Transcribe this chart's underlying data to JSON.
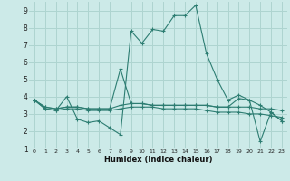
{
  "background_color": "#cceae8",
  "grid_color": "#aed4d0",
  "line_color": "#2d7d72",
  "xlabel": "Humidex (Indice chaleur)",
  "xlim": [
    0,
    23
  ],
  "ylim": [
    1,
    9.5
  ],
  "xticks": [
    0,
    1,
    2,
    3,
    4,
    5,
    6,
    7,
    8,
    9,
    10,
    11,
    12,
    13,
    14,
    15,
    16,
    17,
    18,
    19,
    20,
    21,
    22,
    23
  ],
  "yticks": [
    1,
    2,
    3,
    4,
    5,
    6,
    7,
    8,
    9
  ],
  "series": [
    {
      "x": [
        0,
        1,
        2,
        3,
        4,
        5,
        6,
        7,
        8,
        9,
        10,
        11,
        12,
        13,
        14,
        15,
        16,
        17,
        18,
        19,
        20,
        21,
        22,
        23
      ],
      "y": [
        3.8,
        3.3,
        3.2,
        4.0,
        2.7,
        2.5,
        2.6,
        2.2,
        1.8,
        7.8,
        7.1,
        7.9,
        7.8,
        8.7,
        8.7,
        9.3,
        6.5,
        5.0,
        3.8,
        4.1,
        3.8,
        1.4,
        3.1,
        2.6
      ]
    },
    {
      "x": [
        0,
        1,
        2,
        3,
        4,
        5,
        6,
        7,
        8,
        9,
        10,
        11,
        12,
        13,
        14,
        15,
        16,
        17,
        18,
        19,
        20,
        21,
        22,
        23
      ],
      "y": [
        3.8,
        3.3,
        3.2,
        3.3,
        3.3,
        3.2,
        3.2,
        3.2,
        3.3,
        3.4,
        3.4,
        3.4,
        3.3,
        3.3,
        3.3,
        3.3,
        3.2,
        3.1,
        3.1,
        3.1,
        3.0,
        3.0,
        2.9,
        2.8
      ]
    },
    {
      "x": [
        0,
        1,
        2,
        3,
        4,
        5,
        6,
        7,
        8,
        9,
        10,
        11,
        12,
        13,
        14,
        15,
        16,
        17,
        18,
        19,
        20,
        21,
        22,
        23
      ],
      "y": [
        3.8,
        3.4,
        3.3,
        3.4,
        3.4,
        3.3,
        3.3,
        3.3,
        3.5,
        3.6,
        3.6,
        3.5,
        3.5,
        3.5,
        3.5,
        3.5,
        3.5,
        3.4,
        3.4,
        3.9,
        3.8,
        3.5,
        3.1,
        2.6
      ]
    },
    {
      "x": [
        0,
        1,
        2,
        3,
        4,
        5,
        6,
        7,
        8,
        9,
        10,
        11,
        12,
        13,
        14,
        15,
        16,
        17,
        18,
        19,
        20,
        21,
        22,
        23
      ],
      "y": [
        3.8,
        3.4,
        3.3,
        3.4,
        3.4,
        3.3,
        3.3,
        3.3,
        5.6,
        3.6,
        3.6,
        3.5,
        3.5,
        3.5,
        3.5,
        3.5,
        3.5,
        3.4,
        3.4,
        3.4,
        3.4,
        3.3,
        3.3,
        3.2
      ]
    }
  ]
}
